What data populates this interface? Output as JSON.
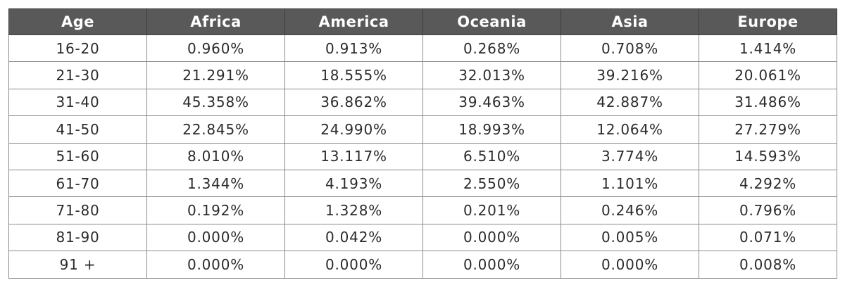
{
  "chart_data": {
    "type": "table",
    "columns": [
      "Age",
      "Africa",
      "America",
      "Oceania",
      "Asia",
      "Europe"
    ],
    "rows": [
      [
        "16-20",
        "0.960%",
        "0.913%",
        "0.268%",
        "0.708%",
        "1.414%"
      ],
      [
        "21-30",
        "21.291%",
        "18.555%",
        "32.013%",
        "39.216%",
        "20.061%"
      ],
      [
        "31-40",
        "45.358%",
        "36.862%",
        "39.463%",
        "42.887%",
        "31.486%"
      ],
      [
        "41-50",
        "22.845%",
        "24.990%",
        "18.993%",
        "12.064%",
        "27.279%"
      ],
      [
        "51-60",
        "8.010%",
        "13.117%",
        "6.510%",
        "3.774%",
        "14.593%"
      ],
      [
        "61-70",
        "1.344%",
        "4.193%",
        "2.550%",
        "1.101%",
        "4.292%"
      ],
      [
        "71-80",
        "0.192%",
        "1.328%",
        "0.201%",
        "0.246%",
        "0.796%"
      ],
      [
        "81-90",
        "0.000%",
        "0.042%",
        "0.000%",
        "0.005%",
        "0.071%"
      ],
      [
        "91 +",
        "0.000%",
        "0.000%",
        "0.000%",
        "0.000%",
        "0.008%"
      ]
    ]
  },
  "colors": {
    "header_background": "#595959",
    "header_text": "#ffffff",
    "cell_text": "#2a2a2a",
    "border": "#8a8a8a"
  }
}
